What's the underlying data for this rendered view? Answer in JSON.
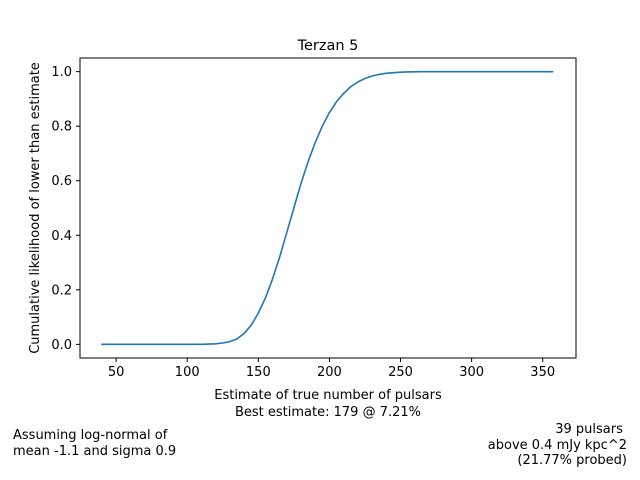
{
  "chart_data": {
    "type": "line",
    "title": "Terzan 5",
    "xlabel": "Estimate of true number of pulsars",
    "xlabel2": "Best estimate: 179 @ 7.21%",
    "ylabel": "Cumulative likelihood of lower than estimate",
    "xlim": [
      24.6,
      373.4
    ],
    "ylim": [
      -0.05,
      1.05
    ],
    "xticks": [
      50,
      100,
      150,
      200,
      250,
      300,
      350
    ],
    "yticks": [
      0.0,
      0.2,
      0.4,
      0.6,
      0.8,
      1.0
    ],
    "ytick_labels": [
      "0.0",
      "0.2",
      "0.4",
      "0.6",
      "0.8",
      "1.0"
    ],
    "grid": false,
    "legend": "none",
    "series": [
      {
        "color": "#1f77b4",
        "x": [
          40,
          60,
          80,
          100,
          110,
          120,
          125,
          130,
          135,
          140,
          145,
          150,
          155,
          160,
          165,
          170,
          175,
          180,
          185,
          190,
          195,
          200,
          205,
          210,
          215,
          220,
          225,
          230,
          235,
          240,
          245,
          250,
          255,
          260,
          265,
          270,
          280,
          290,
          300,
          320,
          340,
          357
        ],
        "y": [
          0.0,
          0.0,
          0.0,
          0.0,
          0.0,
          0.002,
          0.005,
          0.01,
          0.02,
          0.04,
          0.07,
          0.115,
          0.17,
          0.24,
          0.32,
          0.41,
          0.5,
          0.59,
          0.67,
          0.74,
          0.8,
          0.85,
          0.89,
          0.92,
          0.945,
          0.962,
          0.975,
          0.984,
          0.99,
          0.994,
          0.996,
          0.998,
          0.999,
          0.9995,
          0.9998,
          1.0,
          1.0,
          1.0,
          1.0,
          1.0,
          1.0,
          1.0
        ]
      }
    ]
  },
  "notes": {
    "left": "Assuming log-normal of\nmean -1.1 and sigma 0.9",
    "right": "39 pulsars \nabove 0.4 mJy kpc^2\n(21.77% probed)"
  }
}
